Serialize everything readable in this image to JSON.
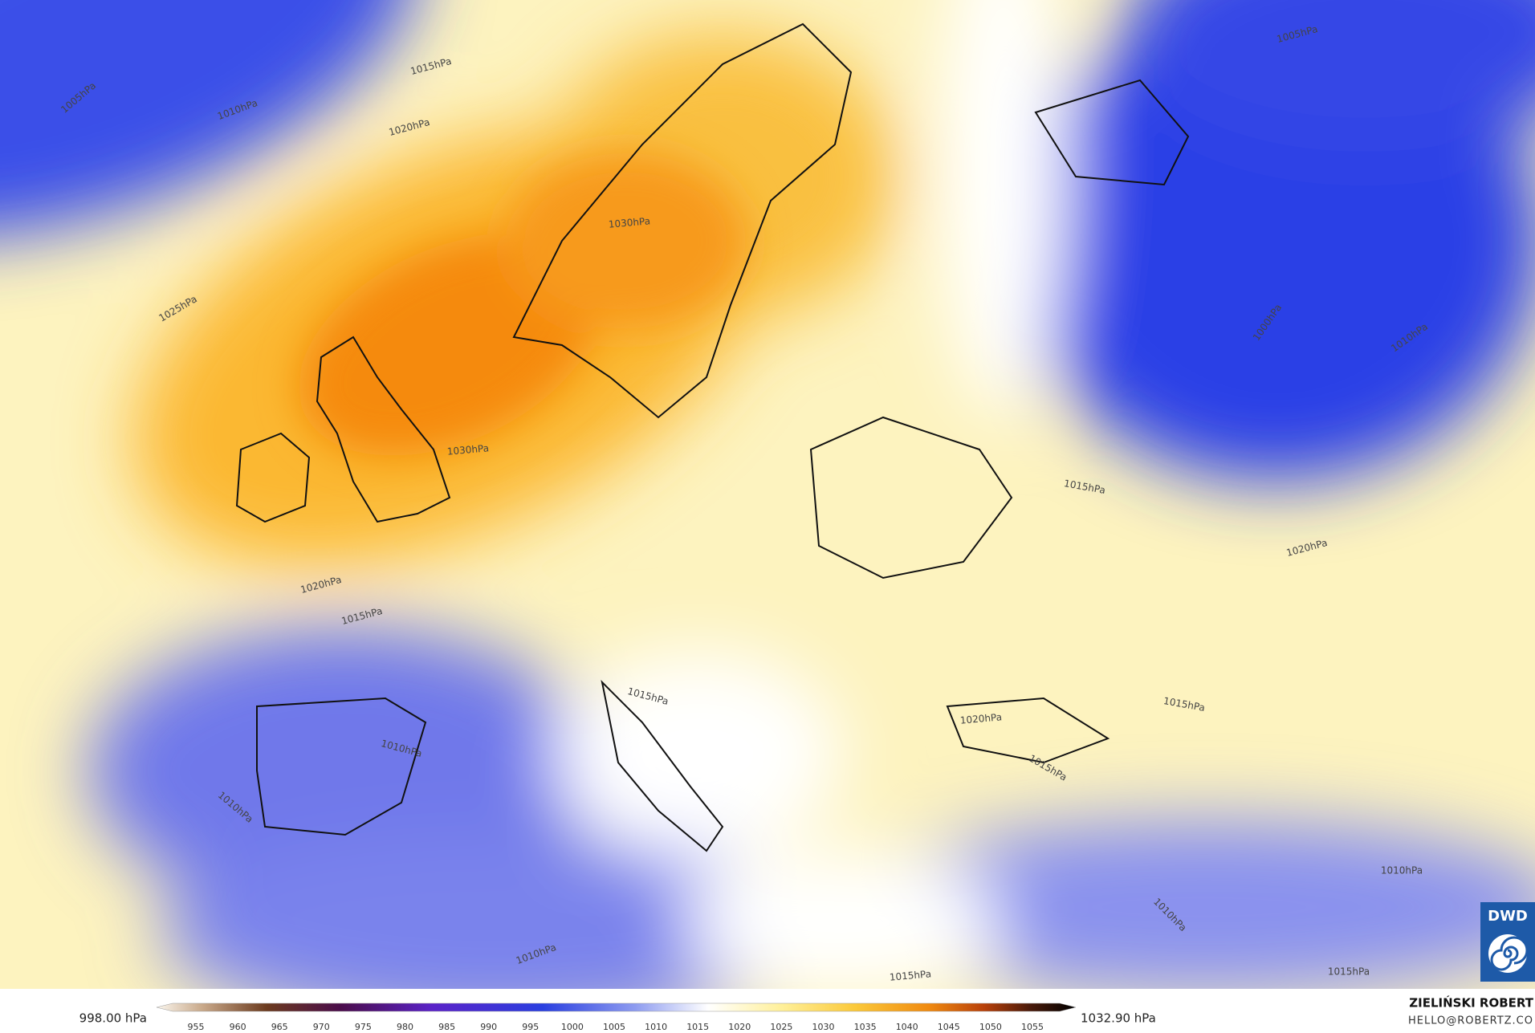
{
  "map": {
    "contour_labels": [
      "1015hPa",
      "1005hPa",
      "1010hPa",
      "1020hPa",
      "1030hPa",
      "1025hPa",
      "1030hPa",
      "1005hPa",
      "1000hPa",
      "1010hPa",
      "1015hPa",
      "1020hPa",
      "1020hPa",
      "1015hPa",
      "1015hPa",
      "1010hPa",
      "1010hPa",
      "1020hPa",
      "1015hPa",
      "1015hPa",
      "1010hPa",
      "1010hPa",
      "1010hPa",
      "1015hPa",
      "1015hPa"
    ]
  },
  "colorbar": {
    "min_label": "998.00 hPa",
    "max_label": "1032.90 hPa",
    "ticks": [
      955,
      960,
      965,
      970,
      975,
      980,
      985,
      990,
      995,
      1000,
      1005,
      1010,
      1015,
      1020,
      1025,
      1030,
      1035,
      1040,
      1045,
      1050,
      1055
    ]
  },
  "credit": {
    "author": "ZIELIŃSKI ROBERT",
    "email": "HELLO@ROBERTZ.CO"
  },
  "logo": "DWD"
}
